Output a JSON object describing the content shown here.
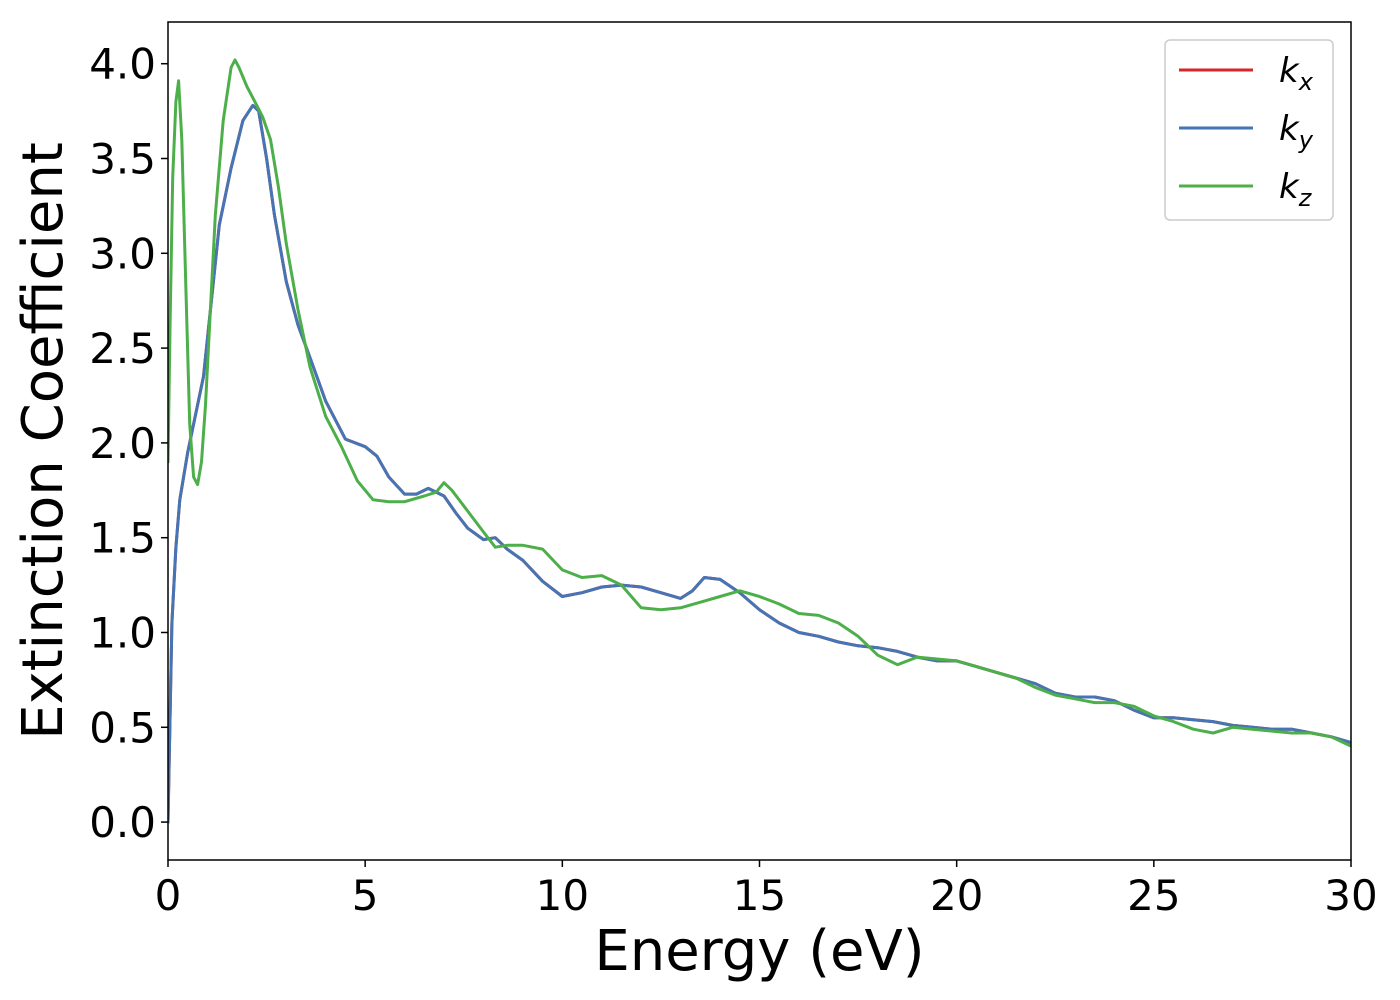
{
  "chart_data": {
    "type": "line",
    "title": "",
    "xlabel": "Energy (eV)",
    "ylabel": "Extinction Coefficient",
    "xlim": [
      0,
      30
    ],
    "ylim": [
      -0.2,
      4.22
    ],
    "xticks": [
      0,
      5,
      10,
      15,
      20,
      25,
      30
    ],
    "xtick_labels": [
      "0",
      "5",
      "10",
      "15",
      "20",
      "25",
      "30"
    ],
    "yticks": [
      0.0,
      0.5,
      1.0,
      1.5,
      2.0,
      2.5,
      3.0,
      3.5,
      4.0
    ],
    "ytick_labels": [
      "0.0",
      "0.5",
      "1.0",
      "1.5",
      "2.0",
      "2.5",
      "3.0",
      "3.5",
      "4.0"
    ],
    "grid": false,
    "legend_position": "top-right",
    "series": [
      {
        "name": "k_x",
        "legend_main": "k",
        "legend_sub": "x",
        "color": "#d62728",
        "x": [
          0,
          0.1,
          0.2,
          0.3,
          0.5,
          0.7,
          0.9,
          1.1,
          1.3,
          1.6,
          1.9,
          2.15,
          2.3,
          2.5,
          2.7,
          3.0,
          3.3,
          3.6,
          4.0,
          4.5,
          5.0,
          5.3,
          5.6,
          6.0,
          6.3,
          6.6,
          7.0,
          7.3,
          7.6,
          8.0,
          8.3,
          8.6,
          9.0,
          9.5,
          10.0,
          10.5,
          11.0,
          11.5,
          12.0,
          12.5,
          13.0,
          13.3,
          13.6,
          14.0,
          14.5,
          15.0,
          15.5,
          16.0,
          16.5,
          17.0,
          17.5,
          18.0,
          18.5,
          19.0,
          19.5,
          20.0,
          20.5,
          21.0,
          21.5,
          22.0,
          22.5,
          23.0,
          23.5,
          24.0,
          24.5,
          25.0,
          25.5,
          26.0,
          26.5,
          27.0,
          27.5,
          28.0,
          28.5,
          29.0,
          29.5,
          30.0
        ],
        "y": [
          0.0,
          1.05,
          1.45,
          1.7,
          1.95,
          2.15,
          2.35,
          2.75,
          3.15,
          3.45,
          3.7,
          3.78,
          3.75,
          3.5,
          3.2,
          2.85,
          2.62,
          2.45,
          2.22,
          2.02,
          1.98,
          1.93,
          1.82,
          1.73,
          1.73,
          1.76,
          1.72,
          1.63,
          1.55,
          1.49,
          1.5,
          1.44,
          1.38,
          1.27,
          1.19,
          1.21,
          1.24,
          1.25,
          1.24,
          1.21,
          1.18,
          1.22,
          1.29,
          1.28,
          1.21,
          1.12,
          1.05,
          1.0,
          0.98,
          0.95,
          0.93,
          0.92,
          0.9,
          0.87,
          0.85,
          0.85,
          0.82,
          0.79,
          0.76,
          0.73,
          0.68,
          0.66,
          0.66,
          0.64,
          0.59,
          0.55,
          0.55,
          0.54,
          0.53,
          0.51,
          0.5,
          0.49,
          0.49,
          0.47,
          0.45,
          0.42
        ]
      },
      {
        "name": "k_y",
        "legend_main": "k",
        "legend_sub": "y",
        "color": "#4575b4",
        "x": [
          0,
          0.1,
          0.2,
          0.3,
          0.5,
          0.7,
          0.9,
          1.1,
          1.3,
          1.6,
          1.9,
          2.15,
          2.3,
          2.5,
          2.7,
          3.0,
          3.3,
          3.6,
          4.0,
          4.5,
          5.0,
          5.3,
          5.6,
          6.0,
          6.3,
          6.6,
          7.0,
          7.3,
          7.6,
          8.0,
          8.3,
          8.6,
          9.0,
          9.5,
          10.0,
          10.5,
          11.0,
          11.5,
          12.0,
          12.5,
          13.0,
          13.3,
          13.6,
          14.0,
          14.5,
          15.0,
          15.5,
          16.0,
          16.5,
          17.0,
          17.5,
          18.0,
          18.5,
          19.0,
          19.5,
          20.0,
          20.5,
          21.0,
          21.5,
          22.0,
          22.5,
          23.0,
          23.5,
          24.0,
          24.5,
          25.0,
          25.5,
          26.0,
          26.5,
          27.0,
          27.5,
          28.0,
          28.5,
          29.0,
          29.5,
          30.0
        ],
        "y": [
          0.0,
          1.05,
          1.45,
          1.7,
          1.95,
          2.15,
          2.35,
          2.75,
          3.15,
          3.45,
          3.7,
          3.78,
          3.75,
          3.5,
          3.2,
          2.85,
          2.62,
          2.45,
          2.22,
          2.02,
          1.98,
          1.93,
          1.82,
          1.73,
          1.73,
          1.76,
          1.72,
          1.63,
          1.55,
          1.49,
          1.5,
          1.44,
          1.38,
          1.27,
          1.19,
          1.21,
          1.24,
          1.25,
          1.24,
          1.21,
          1.18,
          1.22,
          1.29,
          1.28,
          1.21,
          1.12,
          1.05,
          1.0,
          0.98,
          0.95,
          0.93,
          0.92,
          0.9,
          0.87,
          0.85,
          0.85,
          0.82,
          0.79,
          0.76,
          0.73,
          0.68,
          0.66,
          0.66,
          0.64,
          0.59,
          0.55,
          0.55,
          0.54,
          0.53,
          0.51,
          0.5,
          0.49,
          0.49,
          0.47,
          0.45,
          0.42
        ]
      },
      {
        "name": "k_z",
        "legend_main": "k",
        "legend_sub": "z",
        "color": "#4daf4a",
        "x": [
          0,
          0.05,
          0.12,
          0.2,
          0.27,
          0.35,
          0.45,
          0.55,
          0.65,
          0.75,
          0.85,
          0.95,
          1.05,
          1.2,
          1.4,
          1.6,
          1.7,
          1.8,
          2.0,
          2.2,
          2.4,
          2.6,
          2.8,
          3.0,
          3.3,
          3.6,
          4.0,
          4.4,
          4.8,
          5.2,
          5.6,
          6.0,
          6.5,
          6.8,
          7.0,
          7.2,
          7.6,
          8.0,
          8.3,
          8.6,
          9.0,
          9.5,
          10.0,
          10.5,
          11.0,
          11.5,
          12.0,
          12.5,
          13.0,
          13.5,
          14.0,
          14.5,
          15.0,
          15.5,
          16.0,
          16.5,
          17.0,
          17.5,
          18.0,
          18.5,
          19.0,
          19.5,
          20.0,
          20.5,
          21.0,
          21.5,
          22.0,
          22.5,
          23.0,
          23.5,
          24.0,
          24.5,
          25.0,
          25.5,
          26.0,
          26.5,
          27.0,
          27.5,
          28.0,
          28.5,
          29.0,
          29.5,
          30.0
        ],
        "y": [
          1.9,
          2.6,
          3.4,
          3.8,
          3.91,
          3.6,
          2.85,
          2.1,
          1.82,
          1.78,
          1.9,
          2.2,
          2.6,
          3.2,
          3.7,
          3.98,
          4.02,
          3.98,
          3.88,
          3.8,
          3.72,
          3.6,
          3.35,
          3.05,
          2.7,
          2.4,
          2.14,
          1.98,
          1.8,
          1.7,
          1.69,
          1.69,
          1.72,
          1.74,
          1.79,
          1.75,
          1.64,
          1.53,
          1.45,
          1.46,
          1.46,
          1.44,
          1.33,
          1.29,
          1.3,
          1.25,
          1.13,
          1.12,
          1.13,
          1.16,
          1.19,
          1.22,
          1.19,
          1.15,
          1.1,
          1.09,
          1.05,
          0.98,
          0.88,
          0.83,
          0.87,
          0.86,
          0.85,
          0.82,
          0.79,
          0.76,
          0.71,
          0.67,
          0.65,
          0.63,
          0.63,
          0.61,
          0.56,
          0.53,
          0.49,
          0.47,
          0.5,
          0.49,
          0.48,
          0.47,
          0.47,
          0.45,
          0.4
        ]
      }
    ]
  }
}
